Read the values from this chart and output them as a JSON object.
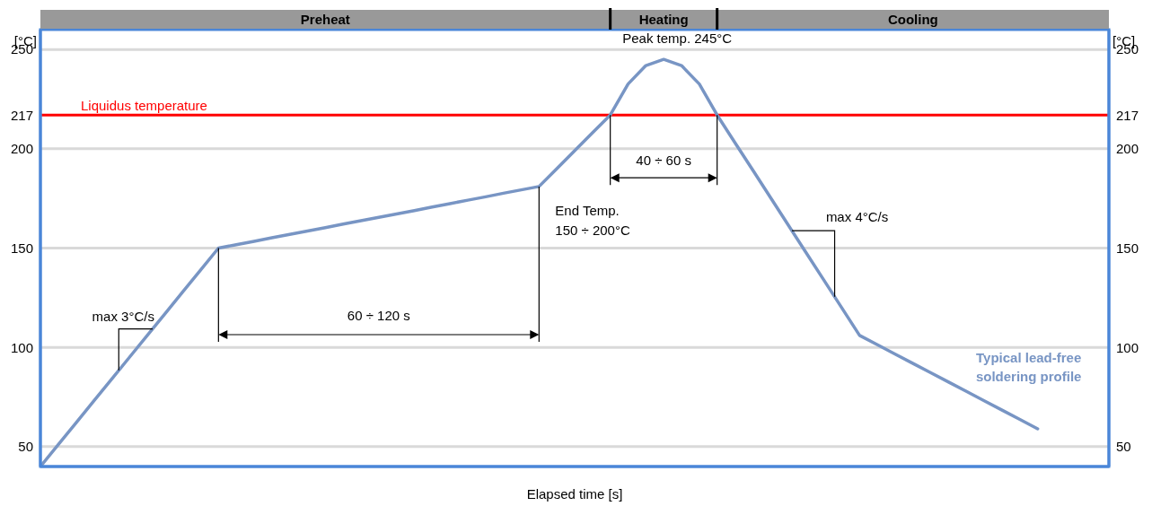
{
  "chart_data": {
    "type": "line",
    "xlabel": "Elapsed time [s]",
    "ylabel": "[°C]",
    "y2label": "[°C]",
    "categories": [
      null,
      null,
      null,
      null,
      null,
      null,
      null,
      null,
      null,
      null,
      null,
      null,
      null,
      null,
      null,
      null,
      null,
      null,
      null,
      null,
      null,
      null,
      null,
      null,
      null,
      null,
      null,
      null,
      null,
      null,
      null,
      null,
      null,
      null,
      null,
      null,
      null,
      null,
      null,
      null,
      null,
      null,
      null,
      null,
      null,
      null,
      null,
      null,
      null,
      null,
      null,
      null,
      null,
      null,
      null,
      null,
      null,
      null,
      null,
      null,
      null
    ],
    "ylim": [
      40,
      260
    ],
    "yticks": [
      50,
      100,
      150,
      200,
      217,
      250
    ],
    "y2lim": [
      40,
      260
    ],
    "y2ticks": [
      50,
      100,
      150,
      200,
      217,
      250
    ],
    "tick_labels": "y",
    "grid": true,
    "legend": false,
    "marker": "none",
    "line_style": "solid",
    "series": [
      {
        "name": "Typical lead-free soldering profile",
        "color": "#7895c4",
        "values": [
          40,
          51,
          62,
          73,
          84,
          95,
          106,
          117,
          128,
          139,
          150,
          151.7,
          153.4,
          155.2,
          156.9,
          158.6,
          160.3,
          162.1,
          163.8,
          165.5,
          167.2,
          168.9,
          170.7,
          172.4,
          174.1,
          175.8,
          177.6,
          179.3,
          181,
          190,
          199,
          208,
          217,
          232.6,
          241.9,
          245,
          241.9,
          232.6,
          217,
          203.1,
          189.3,
          175.4,
          161.5,
          147.6,
          133.8,
          119.9,
          106,
          101.3,
          96.6,
          91.9,
          87.2,
          82.5,
          77.8,
          73.1,
          68.4,
          63.7,
          59,
          null,
          null,
          null,
          null
        ]
      }
    ],
    "ref_lines": [
      {
        "axis": "y",
        "value": 217,
        "label": "Liquidus temperature",
        "color": "#ff0000"
      }
    ],
    "annotations": [
      "Preheat",
      "Heating",
      "Cooling",
      "Peak temp. 245°C",
      "40 ÷ 60 s",
      "60 ÷ 120 s",
      "End Temp. 150 ÷ 200°C",
      "max 3°C/s",
      "max 4°C/s"
    ]
  }
}
